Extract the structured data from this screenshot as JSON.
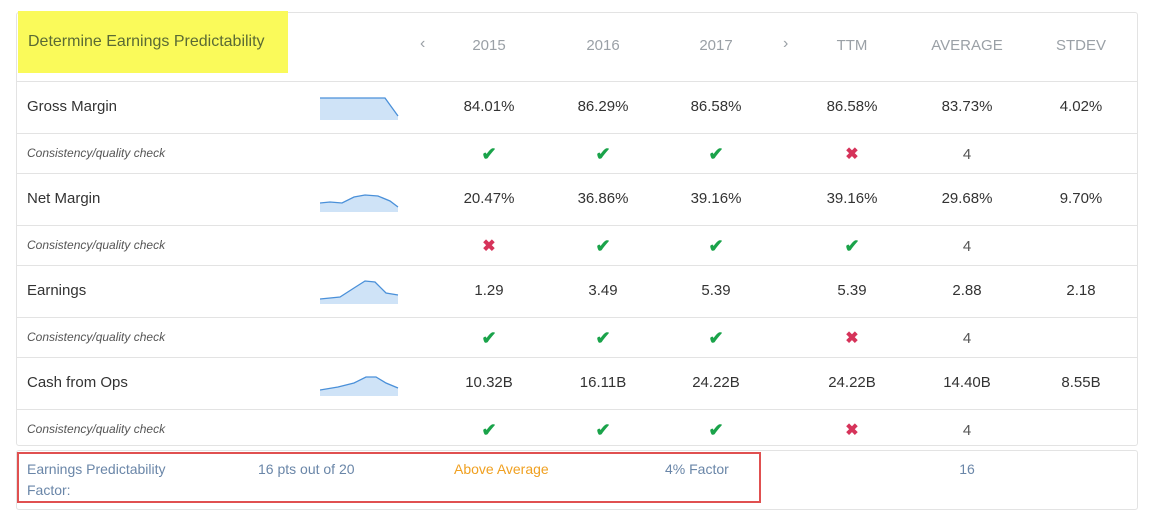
{
  "title": "Determine Earnings Predictability",
  "nav": {
    "prev": "‹",
    "next": "›"
  },
  "columns": [
    "2015",
    "2016",
    "2017",
    "TTM",
    "AVERAGE",
    "STDEV"
  ],
  "metrics": [
    {
      "label": "Gross Margin",
      "values": [
        "84.01%",
        "86.29%",
        "86.58%",
        "86.58%",
        "83.73%",
        "4.02%"
      ],
      "check_label": "Consistency/quality check",
      "checks": [
        "pass",
        "pass",
        "pass",
        "fail"
      ],
      "check_count": "4"
    },
    {
      "label": "Net Margin",
      "values": [
        "20.47%",
        "36.86%",
        "39.16%",
        "39.16%",
        "29.68%",
        "9.70%"
      ],
      "check_label": "Consistency/quality check",
      "checks": [
        "fail",
        "pass",
        "pass",
        "pass"
      ],
      "check_count": "4"
    },
    {
      "label": "Earnings",
      "values": [
        "1.29",
        "3.49",
        "5.39",
        "5.39",
        "2.88",
        "2.18"
      ],
      "check_label": "Consistency/quality check",
      "checks": [
        "pass",
        "pass",
        "pass",
        "fail"
      ],
      "check_count": "4"
    },
    {
      "label": "Cash from Ops",
      "values": [
        "10.32B",
        "16.11B",
        "24.22B",
        "24.22B",
        "14.40B",
        "8.55B"
      ],
      "check_label": "Consistency/quality check",
      "checks": [
        "pass",
        "pass",
        "pass",
        "fail"
      ],
      "check_count": "4"
    }
  ],
  "footer": {
    "label_line1": "Earnings Predictability",
    "label_line2": "Factor:",
    "points": "16 pts out of 20",
    "rating": "Above Average",
    "factor": "4% Factor",
    "score": "16"
  },
  "colors": {
    "highlight": "#fafa5a",
    "pass": "#1aa34a",
    "fail": "#d6335a",
    "rating": "#f0a020",
    "footer_text": "#6a86a8",
    "box": "#e05050"
  },
  "icons": {
    "pass": "check-icon",
    "fail": "cross-icon",
    "nav_prev": "chevron-left-icon",
    "nav_next": "chevron-right-icon"
  }
}
